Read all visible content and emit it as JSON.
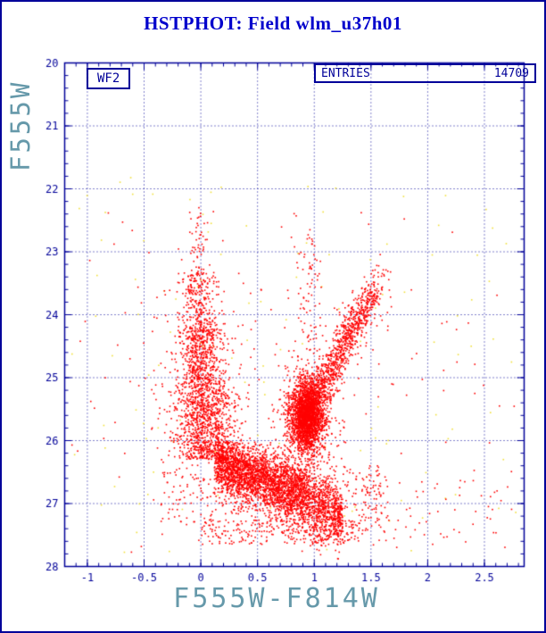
{
  "title": "HSTPHOT: Field wlm_u37h01",
  "detector_label": "WF2",
  "entries": {
    "label": "ENTRIES",
    "value": "14709"
  },
  "chart_data": {
    "type": "scatter",
    "title": "HSTPHOT: Field wlm_u37h01",
    "xlabel": "F555W-F814W",
    "ylabel": "F555W",
    "xlim": [
      -1.2,
      2.85
    ],
    "ylim": [
      20,
      28
    ],
    "y_inverted": true,
    "grid": "dotted",
    "x_ticks": [
      -1,
      -0.5,
      0,
      0.5,
      1,
      1.5,
      2,
      2.5
    ],
    "x_tick_labels": [
      "-1",
      "-0.5",
      "0",
      "0.5",
      "1",
      "1.5",
      "2",
      "2.5"
    ],
    "y_ticks": [
      20,
      21,
      22,
      23,
      24,
      25,
      26,
      27,
      28
    ],
    "y_tick_labels": [
      "20",
      "21",
      "22",
      "23",
      "24",
      "25",
      "26",
      "27",
      "28"
    ],
    "x_minor_step": 0.1,
    "y_minor_step": 0.2,
    "axis_color": "#000099",
    "label_color": "#6699aa",
    "title_color": "#0000cc",
    "legend": "none",
    "point_colors": {
      "primary": "#ff0000",
      "secondary": "#f0df3a"
    },
    "series": [
      {
        "name": "faint-detections-yellow",
        "color": "secondary",
        "kind": "uniform",
        "n": 140,
        "x0": -1.15,
        "x1": 2.8,
        "y0": 21.8,
        "y1": 27.8
      },
      {
        "name": "field-scatter",
        "color": "primary",
        "kind": "uniform",
        "n": 110,
        "x0": -1.15,
        "x1": 2.8,
        "y0": 22.2,
        "y1": 27.8
      },
      {
        "name": "blue-plume-top",
        "color": "primary",
        "kind": "gauss-band",
        "n": 50,
        "x": -0.02,
        "sx": 0.05,
        "y0": 22.3,
        "y1": 23.3
      },
      {
        "name": "blue-plume-upper",
        "color": "primary",
        "kind": "gauss-band",
        "n": 240,
        "x": -0.02,
        "sx": 0.08,
        "y0": 23.3,
        "y1": 24.2
      },
      {
        "name": "blue-plume-mid",
        "color": "primary",
        "kind": "gauss-band",
        "n": 600,
        "x": 0.0,
        "sx": 0.1,
        "y0": 24.2,
        "y1": 25.2
      },
      {
        "name": "blue-plume-lower",
        "color": "primary",
        "kind": "gauss-band",
        "n": 900,
        "x": 0.04,
        "sx": 0.13,
        "y0": 25.2,
        "y1": 26.3
      },
      {
        "name": "blue-plume-wings",
        "color": "primary",
        "kind": "gauss-band",
        "n": 170,
        "x": 0.0,
        "sx": 0.3,
        "y0": 23.4,
        "y1": 26.2
      },
      {
        "name": "red-giant-branch",
        "color": "primary",
        "kind": "line",
        "n": 750,
        "x1": 1.0,
        "y1": 25.4,
        "x2": 1.52,
        "y2": 23.6,
        "sx": 0.05,
        "sy": 0.08
      },
      {
        "name": "rgb-spread",
        "color": "primary",
        "kind": "line",
        "n": 180,
        "x1": 1.0,
        "y1": 25.3,
        "x2": 1.5,
        "y2": 23.7,
        "sx": 0.13,
        "sy": 0.15
      },
      {
        "name": "rgb-tip",
        "color": "primary",
        "kind": "line",
        "n": 25,
        "x1": 1.5,
        "y1": 23.65,
        "x2": 1.62,
        "y2": 23.25,
        "sx": 0.04,
        "sy": 0.06
      },
      {
        "name": "agb-sequence",
        "color": "primary",
        "kind": "gauss-band",
        "n": 70,
        "x": 0.95,
        "sx": 0.05,
        "y0": 22.65,
        "y1": 24.4
      },
      {
        "name": "red-clump-core",
        "color": "primary",
        "kind": "blob",
        "n": 2100,
        "x": 0.94,
        "sx": 0.07,
        "y": 25.6,
        "sy": 0.27
      },
      {
        "name": "red-clump-halo",
        "color": "primary",
        "kind": "blob",
        "n": 550,
        "x": 0.94,
        "sx": 0.13,
        "y": 25.7,
        "sy": 0.45
      },
      {
        "name": "subgiant-swath",
        "color": "primary",
        "kind": "curve",
        "n": 2700,
        "x0": 0.12,
        "x1": 1.25,
        "a": 26.3,
        "b": 0.72,
        "sy": 0.26
      },
      {
        "name": "turnoff-band",
        "color": "primary",
        "kind": "curve",
        "n": 900,
        "x0": 0.15,
        "x1": 0.95,
        "a": 26.2,
        "b": 0.55,
        "sy": 0.16
      },
      {
        "name": "faint-limit",
        "color": "primary",
        "kind": "uniform",
        "n": 230,
        "x0": 0.0,
        "x1": 1.45,
        "y0": 27.25,
        "y1": 27.65
      },
      {
        "name": "faint-red-extension",
        "color": "primary",
        "kind": "uniform",
        "n": 110,
        "x0": 1.25,
        "x1": 1.65,
        "y0": 26.4,
        "y1": 27.45
      },
      {
        "name": "faint-blue-extension",
        "color": "primary",
        "kind": "uniform",
        "n": 90,
        "x0": -0.35,
        "x1": 0.12,
        "y0": 26.3,
        "y1": 27.35
      },
      {
        "name": "bottom-right-scatter",
        "color": "primary",
        "kind": "uniform",
        "n": 60,
        "x0": 1.5,
        "x1": 2.75,
        "y0": 26.6,
        "y1": 27.7
      }
    ]
  }
}
